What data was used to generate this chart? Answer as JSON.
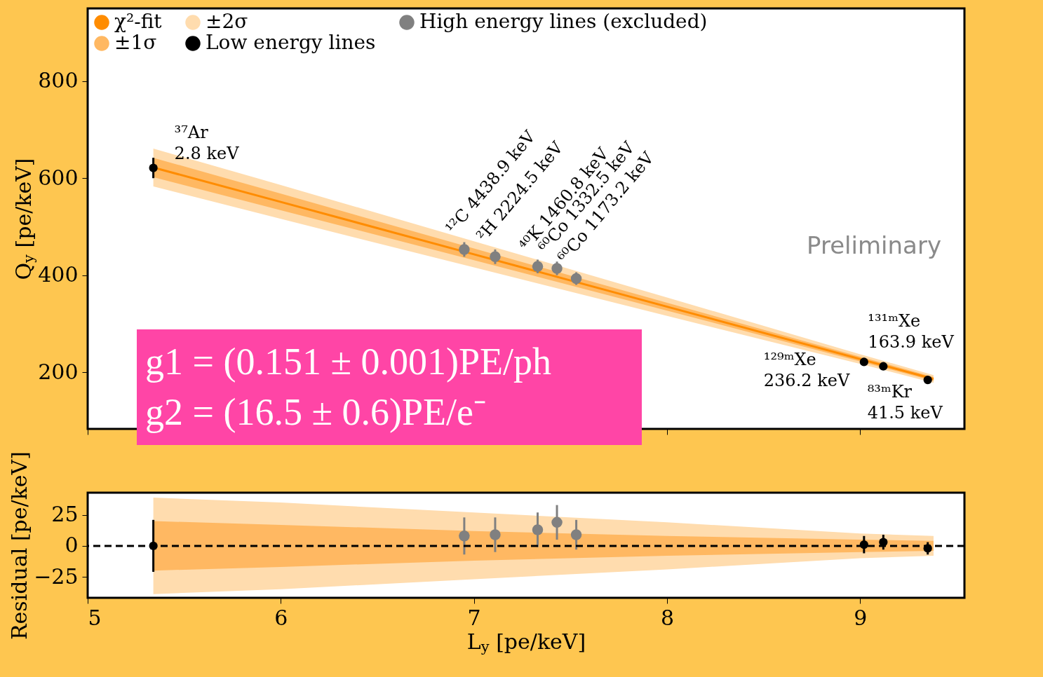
{
  "chart_data": [
    {
      "type": "scatter",
      "ylabel": "Q$_{y}$ [pe/keV]",
      "xlim": [
        5,
        9.54
      ],
      "xticks": [
        5,
        6,
        7,
        8,
        9
      ],
      "ylim": [
        83,
        950
      ],
      "yticks": [
        200,
        400,
        600,
        800
      ],
      "tick_labels": "y",
      "legend": "top left",
      "series": [
        {
          "name": "χ²-fit",
          "type": "line",
          "color": "#ff8c00",
          "x": [
            5.34,
            6,
            7,
            8,
            9,
            9.38
          ],
          "values": [
            622,
            551,
            443,
            335,
            227,
            186
          ]
        },
        {
          "name": "±1σ",
          "type": "line",
          "color": "#ffb862",
          "x": [
            5.34,
            6,
            7,
            8,
            9,
            9.38
          ],
          "values": [
            null,
            null,
            null,
            null,
            null,
            null
          ],
          "lower": [
            602,
            534,
            431,
            327,
            222,
            182
          ],
          "upper": [
            642,
            568,
            455,
            343,
            232,
            190
          ]
        },
        {
          "name": "±2σ",
          "type": "line",
          "color": "#ffdcae",
          "x": [
            5.34,
            6,
            7,
            8,
            9,
            9.38
          ],
          "values": [
            null,
            null,
            null,
            null,
            null,
            null
          ],
          "lower": [
            583,
            516,
            416,
            316,
            217,
            178
          ],
          "upper": [
            661,
            586,
            470,
            354,
            237,
            194
          ]
        },
        {
          "name": "Low energy lines",
          "color": "#000000",
          "marker": "circle",
          "x": [
            5.34,
            9.02,
            9.12,
            9.35
          ],
          "values": [
            621,
            221,
            212,
            184
          ],
          "errors": [
            21,
            7,
            6,
            5
          ]
        },
        {
          "name": "High energy lines (excluded)",
          "color": "#808080",
          "marker": "circle",
          "x": [
            6.95,
            7.11,
            7.33,
            7.43,
            7.53
          ],
          "values": [
            453,
            438,
            418,
            414,
            393
          ],
          "errors": [
            15,
            15,
            14,
            14,
            13
          ]
        }
      ],
      "annotations": [
        "g1 = (0.151 ± 0.001)PE/ph",
        "g2 = (16.5 ± 0.6)PE/e⁻",
        "Preliminary",
        {
          "text": "³⁷Ar\n   2.8 keV",
          "x": 5.34,
          "y": 621
        },
        {
          "text": "¹²C    4438.9 keV",
          "x": 6.95,
          "y": 453
        },
        {
          "text": "²H    2224.5 keV",
          "x": 7.11,
          "y": 438
        },
        {
          "text": "⁴⁰K    1460.8 keV",
          "x": 7.33,
          "y": 418
        },
        {
          "text": "⁶⁰Co    1332.5 keV",
          "x": 7.43,
          "y": 414
        },
        {
          "text": "⁶⁰Co    1173.2 keV",
          "x": 7.53,
          "y": 393
        },
        {
          "text": "¹²⁹ᵐXe\n236.2 keV",
          "x": 9.02,
          "y": 221
        },
        {
          "text": "¹³¹ᵐXe\n163.9 keV",
          "x": 9.12,
          "y": 212
        },
        {
          "text": "⁸³ᵐKr\n   41.5 keV",
          "x": 9.35,
          "y": 184
        }
      ]
    },
    {
      "type": "scatter",
      "xlabel": "L$_{y}$ [pe/keV]",
      "ylabel": "Residual [pe/keV]",
      "xlim": [
        5,
        9.54
      ],
      "xticks": [
        5,
        6,
        7,
        8,
        9
      ],
      "ylim": [
        -42,
        43
      ],
      "yticks": [
        {
          "value": -25,
          "label": "−25"
        },
        0,
        25
      ],
      "series": [
        {
          "type": "line",
          "color": "#ffb862",
          "x": [
            5.34,
            6,
            7,
            8,
            9,
            9.38
          ],
          "values": [
            null,
            null,
            null,
            null,
            null,
            null
          ],
          "lower": [
            -20,
            -17,
            -12,
            -8,
            -5,
            -4
          ],
          "upper": [
            20,
            17,
            12,
            8,
            5,
            4
          ]
        },
        {
          "type": "line",
          "color": "#ffdcae",
          "x": [
            5.34,
            6,
            7,
            8,
            9,
            9.38
          ],
          "values": [
            null,
            null,
            null,
            null,
            null,
            null
          ],
          "lower": [
            -39,
            -35,
            -27,
            -19,
            -10,
            -8
          ],
          "upper": [
            39,
            35,
            27,
            19,
            10,
            8
          ]
        },
        {
          "color": "#000000",
          "marker": "circle",
          "x": [
            5.34,
            9.02,
            9.12,
            9.35
          ],
          "values": [
            0,
            1,
            3,
            -2
          ],
          "errors": [
            21,
            7,
            6,
            5
          ]
        },
        {
          "color": "#808080",
          "marker": "circle",
          "x": [
            6.95,
            7.11,
            7.33,
            7.43,
            7.53
          ],
          "values": [
            8,
            9,
            13,
            19,
            9
          ],
          "errors": [
            15,
            14,
            14,
            14,
            12
          ]
        }
      ],
      "ref_lines": [
        {
          "axis": "y",
          "value": 0,
          "color": "#000000",
          "line_style": "dashed"
        }
      ]
    }
  ]
}
